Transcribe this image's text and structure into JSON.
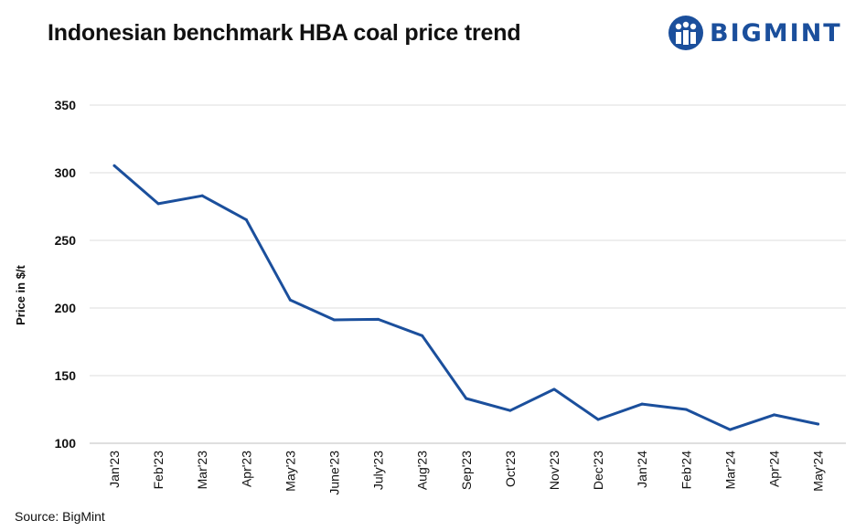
{
  "header": {
    "title": "Indonesian benchmark HBA coal price trend",
    "logo_text": "BIGMINT",
    "logo_icon": "bigmint-logo-icon",
    "brand_color": "#1b4f9c"
  },
  "footer": {
    "source": "Source: BigMint"
  },
  "chart_data": {
    "type": "line",
    "title": "Indonesian benchmark HBA coal price trend",
    "xlabel": "",
    "ylabel": "Price in $/t",
    "categories": [
      "Jan'23",
      "Feb'23",
      "Mar'23",
      "Apr'23",
      "May'23",
      "June'23",
      "July'23",
      "Aug'23",
      "Sep'23",
      "Oct'23",
      "Nov'23",
      "Dec'23",
      "Jan'24",
      "Feb'24",
      "Mar'24",
      "Apr'24",
      "May'24"
    ],
    "series": [
      {
        "values": [
          305.2,
          277.1,
          283.0,
          265.3,
          205.9,
          191.2,
          191.6,
          179.5,
          133.1,
          124.2,
          139.9,
          117.6,
          129.0,
          125.0,
          110.1,
          121.0,
          114.2
        ],
        "color": "#1b4f9c"
      }
    ],
    "yticks": [
      100,
      150,
      200,
      250,
      300,
      350
    ],
    "ylim": [
      100,
      350
    ],
    "grid": true,
    "legend": "none"
  }
}
